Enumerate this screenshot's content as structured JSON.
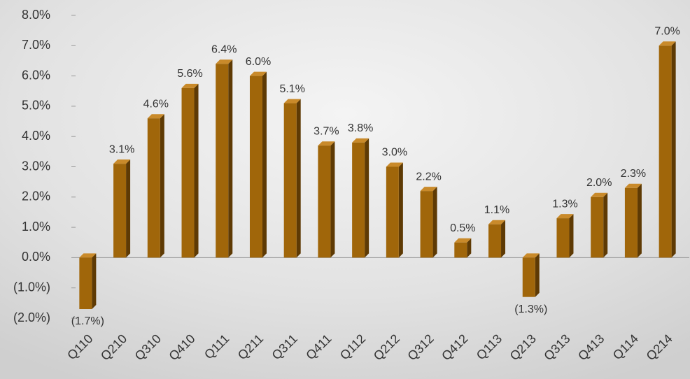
{
  "chart_data": {
    "type": "bar",
    "categories": [
      "Q110",
      "Q210",
      "Q310",
      "Q410",
      "Q111",
      "Q211",
      "Q311",
      "Q411",
      "Q112",
      "Q212",
      "Q312",
      "Q412",
      "Q113",
      "Q213",
      "Q313",
      "Q413",
      "Q114",
      "Q214"
    ],
    "values": [
      -1.7,
      3.1,
      4.6,
      5.6,
      6.4,
      6.0,
      5.1,
      3.7,
      3.8,
      3.0,
      2.2,
      0.5,
      1.1,
      -1.3,
      1.3,
      2.0,
      2.3,
      7.0
    ],
    "value_labels": [
      "(1.7%)",
      "3.1%",
      "4.6%",
      "5.6%",
      "6.4%",
      "6.0%",
      "5.1%",
      "3.7%",
      "3.8%",
      "3.0%",
      "2.2%",
      "0.5%",
      "1.1%",
      "(1.3%)",
      "1.3%",
      "2.0%",
      "2.3%",
      "7.0%"
    ],
    "color": "#a0660a",
    "ylim": [
      -2,
      8
    ],
    "yticks": [
      {
        "value": -2,
        "label": "(2.0%)"
      },
      {
        "value": -1,
        "label": "(1.0%)"
      },
      {
        "value": 0,
        "label": "0.0%"
      },
      {
        "value": 1,
        "label": "1.0%"
      },
      {
        "value": 2,
        "label": "2.0%"
      },
      {
        "value": 3,
        "label": "3.0%"
      },
      {
        "value": 4,
        "label": "4.0%"
      },
      {
        "value": 5,
        "label": "5.0%"
      },
      {
        "value": 6,
        "label": "6.0%"
      },
      {
        "value": 7,
        "label": "7.0%"
      },
      {
        "value": 8,
        "label": "8.0%"
      }
    ]
  }
}
